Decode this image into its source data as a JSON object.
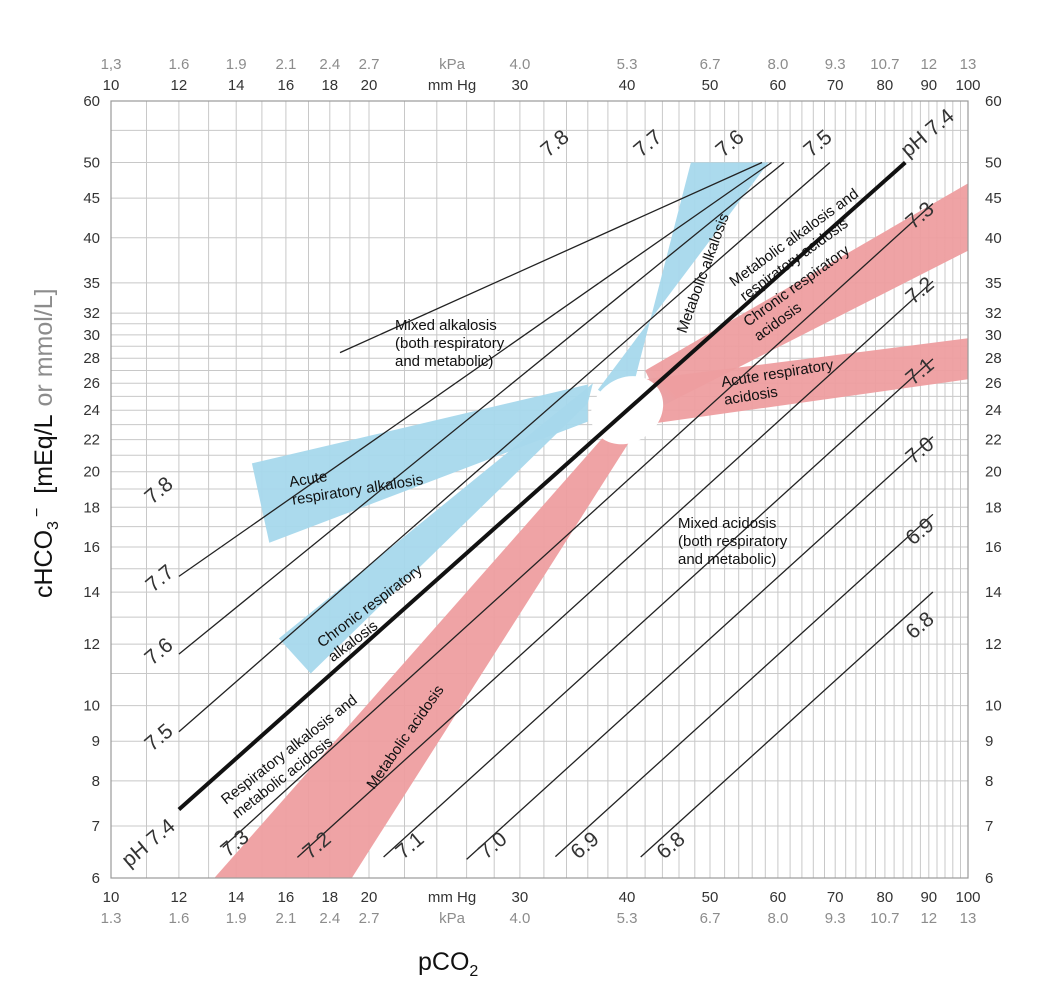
{
  "colors": {
    "alkalosis": "#a6d8ec",
    "acidosis": "#ee9ea0",
    "normal_line": "#111111",
    "grid": "#c8c8c8",
    "isobar": "#222222",
    "label_grey": "#8c8c8c"
  },
  "chart_data": {
    "type": "line",
    "xlabel": "pCO",
    "xlabel_sub": "2",
    "ylabel_main": "cHCO",
    "ylabel_sub": "3",
    "ylabel_sup": "−",
    "ylabel_units1": "[mEq/L",
    "ylabel_units2": "or mmol/L]",
    "x_scale": "log",
    "y_scale": "log",
    "xlim": [
      10,
      100
    ],
    "ylim": [
      6,
      60
    ],
    "grid": true,
    "x_unit_mmhg": "mm Hg",
    "x_unit_kpa": "kPa",
    "x_ticks_mmhg": [
      10,
      12,
      14,
      16,
      18,
      20,
      30,
      40,
      50,
      60,
      70,
      80,
      90,
      100
    ],
    "x_ticks_kpa": [
      "1.3",
      "1.6",
      "1.9",
      "2.1",
      "2.4",
      "2.7",
      "4.0",
      "5.3",
      "6.7",
      "8.0",
      "9.3",
      "10.7",
      "12",
      "13"
    ],
    "x_ticks_kpa_top": [
      "1,3",
      "1.6",
      "1.9",
      "2.1",
      "2.4",
      "2.7",
      "4.0",
      "5.3",
      "6.7",
      "8.0",
      "9.3",
      "10.7",
      "12",
      "13"
    ],
    "y_ticks": [
      6,
      7,
      8,
      9,
      10,
      12,
      14,
      16,
      18,
      20,
      22,
      24,
      26,
      28,
      30,
      32,
      35,
      40,
      45,
      50,
      60
    ],
    "isopleths": [
      {
        "ph": 7.8,
        "label": "7.8"
      },
      {
        "ph": 7.7,
        "label": "7.7"
      },
      {
        "ph": 7.6,
        "label": "7.6"
      },
      {
        "ph": 7.5,
        "label": "7.5"
      },
      {
        "ph": 7.4,
        "label": "pH 7.4"
      },
      {
        "ph": 7.3,
        "label": "7.3"
      },
      {
        "ph": 7.2,
        "label": "7.2"
      },
      {
        "ph": 7.1,
        "label": "7.1"
      },
      {
        "ph": 7.0,
        "label": "7.0"
      },
      {
        "ph": 6.9,
        "label": "6.9"
      },
      {
        "ph": 6.8,
        "label": "6.8"
      }
    ],
    "series": [
      {
        "name": "Metabolic alkalosis",
        "type": "band",
        "color": "alkalosis",
        "points": [
          [
            37,
            25.5
          ],
          [
            40,
            24
          ],
          [
            47.5,
            50
          ],
          [
            58.5,
            50
          ]
        ]
      },
      {
        "name": "Acute respiratory alkalosis",
        "type": "band",
        "color": "alkalosis",
        "points": [
          [
            14.6,
            20.5
          ],
          [
            15.3,
            16.2
          ],
          [
            36,
            23.2
          ],
          [
            36,
            25.9
          ]
        ]
      },
      {
        "name": "Chronic respiratory alkalosis",
        "type": "band",
        "color": "alkalosis",
        "points": [
          [
            15.7,
            12.2
          ],
          [
            17.1,
            11
          ],
          [
            36,
            24.5
          ],
          [
            36.5,
            26
          ]
        ]
      },
      {
        "name": "Metabolic acidosis",
        "type": "band",
        "color": "acidosis",
        "points": [
          [
            13.2,
            6
          ],
          [
            19.1,
            6
          ],
          [
            43,
            24.5
          ],
          [
            40,
            24
          ]
        ]
      },
      {
        "name": "Acute respiratory acidosis",
        "type": "band",
        "color": "acidosis",
        "points": [
          [
            42,
            26.3
          ],
          [
            100,
            29.7
          ],
          [
            100,
            26.3
          ],
          [
            42,
            23
          ]
        ]
      },
      {
        "name": "Chronic respiratory acidosis",
        "type": "band",
        "color": "acidosis",
        "points": [
          [
            42,
            27
          ],
          [
            100,
            47
          ],
          [
            100,
            38.5
          ],
          [
            44,
            24.3
          ]
        ]
      }
    ],
    "normal_zone": {
      "pco2": 40,
      "hco3": 24
    },
    "annotations": [
      {
        "lines": [
          "Mixed alkalosis",
          "(both respiratory",
          "and metabolic)"
        ]
      },
      {
        "lines": [
          "Acute",
          "respiratory alkalosis"
        ]
      },
      {
        "lines": [
          "Metabolic alkalosis"
        ]
      },
      {
        "lines": [
          "Metabolic alkalosis and",
          "respiratory acidosis"
        ]
      },
      {
        "lines": [
          "Chronic respiratory",
          "acidosis"
        ]
      },
      {
        "lines": [
          "Acute respiratory",
          "acidosis"
        ]
      },
      {
        "lines": [
          "Chronic respiratory",
          "alkalosis"
        ]
      },
      {
        "lines": [
          "Respiratory alkalosis and",
          "metabolic acidosis"
        ]
      },
      {
        "lines": [
          "Metabolic acidosis"
        ]
      },
      {
        "lines": [
          "Mixed acidosis",
          "(both respiratory",
          "and metabolic)"
        ]
      }
    ]
  }
}
